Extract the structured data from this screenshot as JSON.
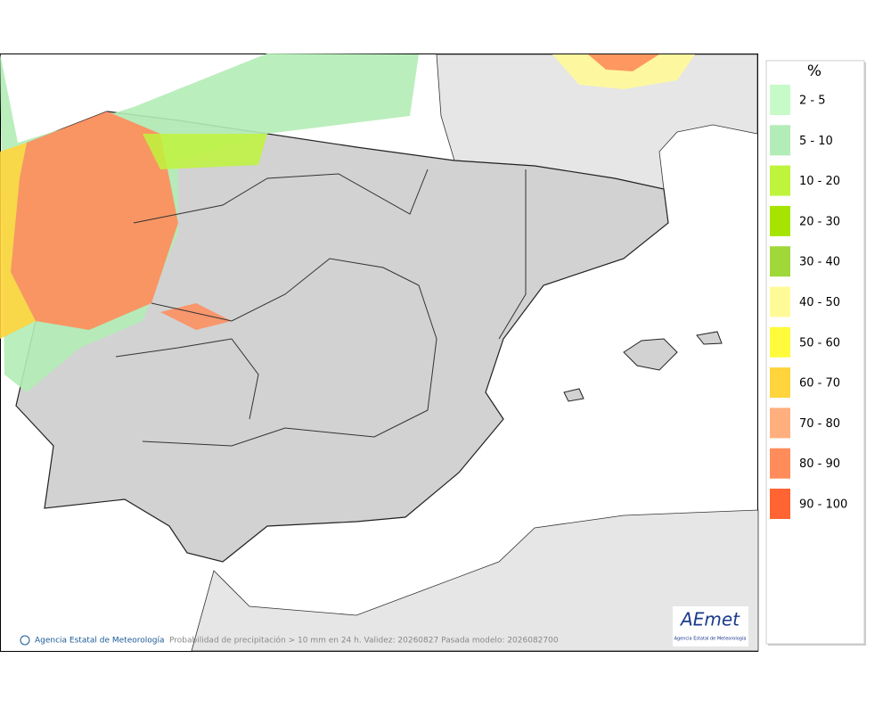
{
  "legend": {
    "title": "%",
    "items": [
      {
        "label": "2 - 5",
        "color": "#c6fbc8"
      },
      {
        "label": "5 - 10",
        "color": "#b2ecb6"
      },
      {
        "label": "10 - 20",
        "color": "#bff43c"
      },
      {
        "label": "20 - 30",
        "color": "#a6e400"
      },
      {
        "label": "30 - 40",
        "color": "#a0d83a"
      },
      {
        "label": "40 - 50",
        "color": "#fffa98"
      },
      {
        "label": "50 - 60",
        "color": "#fffa3c"
      },
      {
        "label": "60 - 70",
        "color": "#ffd43c"
      },
      {
        "label": "70 - 80",
        "color": "#ffaf7d"
      },
      {
        "label": "80 - 90",
        "color": "#ff8c5a"
      },
      {
        "label": "90 - 100",
        "color": "#ff6432"
      }
    ]
  },
  "footer": {
    "agency": "Agencia Estatal de Meteorología",
    "caption": "Probabilidad de precipitación > 10 mm en 24 h. Validez: 20260827 Pasada modelo: 2026082700"
  },
  "logo": {
    "name": "AEmet",
    "subtitle": "Agencia Estatal de Meteorología"
  }
}
